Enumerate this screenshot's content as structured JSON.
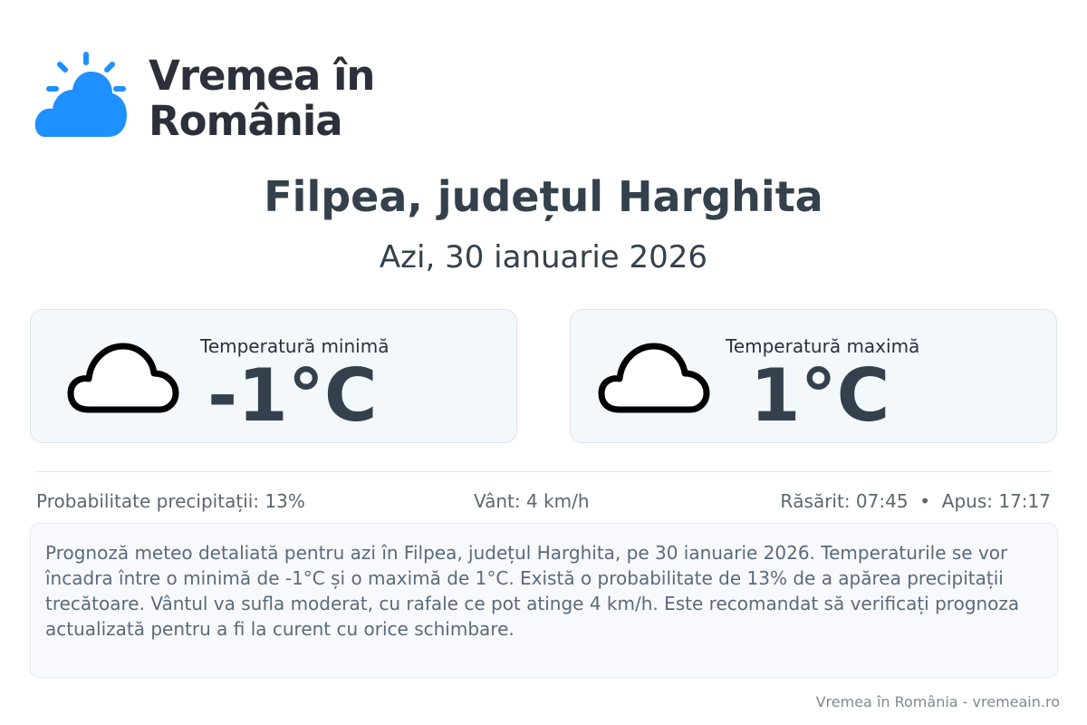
{
  "brand": {
    "name_line1": "Vremea în",
    "name_line2": "România",
    "logo_icon": "sun-behind-cloud-icon",
    "color": "#1e90ff"
  },
  "header": {
    "title": "Filpea, județul Harghita",
    "subtitle": "Azi, 30 ianuarie 2026"
  },
  "cards": [
    {
      "label": "Temperatură minimă",
      "value": "-1°C",
      "icon": "cloud-icon"
    },
    {
      "label": "Temperatură maximă",
      "value": "1°C",
      "icon": "cloud-icon"
    }
  ],
  "info": {
    "precipitation": "Probabilitate precipitații: 13%",
    "wind": "Vânt: 4 km/h",
    "sun": "Răsărit: 07:45  •  Apus: 17:17"
  },
  "description": "Prognoză meteo detaliată pentru azi în Filpea, județul Harghita, pe 30 ianuarie 2026. Temperaturile se vor încadra între o minimă de -1°C și o maximă de 1°C. Există o probabilitate de 13% de a apărea precipitații trecătoare. Vântul va sufla moderat, cu rafale ce pot atinge 4 km/h. Este recomandat să verificați prognoza actualizată pentru a fi la curent cu orice schimbare.",
  "footer": "Vremea în România - vremeain.ro"
}
